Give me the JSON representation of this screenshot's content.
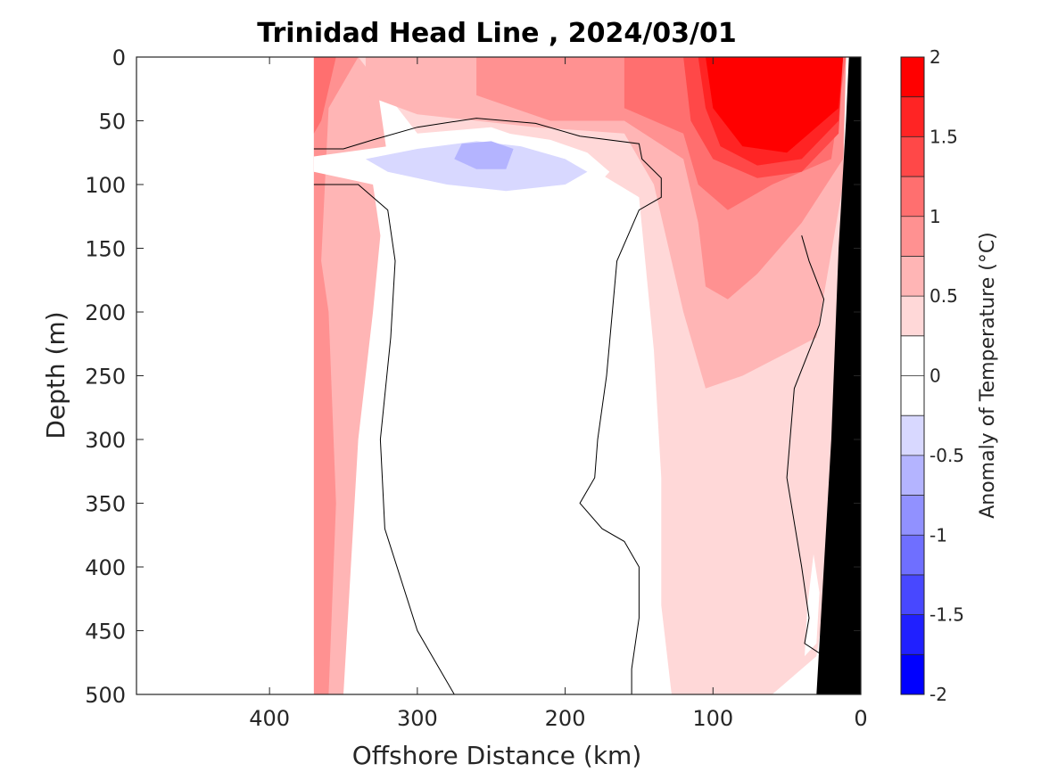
{
  "chart_data": {
    "type": "heatmap",
    "title": "Trinidad Head Line , 2024/03/01",
    "xlabel": "Offshore Distance (km)",
    "ylabel": "Depth (m)",
    "xlim": [
      490,
      0
    ],
    "ylim": [
      0,
      500
    ],
    "x_reversed": true,
    "y_reversed": true,
    "xticks": [
      400,
      300,
      200,
      100,
      0
    ],
    "yticks": [
      0,
      50,
      100,
      150,
      200,
      250,
      300,
      350,
      400,
      450,
      500
    ],
    "colorbar": {
      "label": "Anomaly of Temperature (°C)",
      "range": [
        -2,
        2
      ],
      "step": 0.25,
      "ticks": [
        -2,
        -1.5,
        -1,
        -0.5,
        0,
        0.5,
        1,
        1.5,
        2
      ],
      "colors": [
        "#0000ff",
        "#2020ff",
        "#4848ff",
        "#6f6fff",
        "#9191ff",
        "#b4b4ff",
        "#d8d8ff",
        "#ffffff",
        "#ffffff",
        "#ffd8d8",
        "#ffb5b5",
        "#ff9191",
        "#ff6f6f",
        "#ff4848",
        "#ff2424",
        "#ff0000"
      ]
    },
    "data_extent_km": [
      370,
      0
    ],
    "shelf_color": "#000000",
    "regions": [
      {
        "anomaly": 0.25,
        "points": [
          [
            370,
            0
          ],
          [
            350,
            0
          ],
          [
            350,
            470
          ],
          [
            370,
            470
          ]
        ]
      },
      {
        "anomaly": 0.5,
        "points": [
          [
            370,
            0
          ],
          [
            330,
            0
          ],
          [
            320,
            80
          ],
          [
            330,
            100
          ],
          [
            325,
            140
          ],
          [
            330,
            200
          ],
          [
            340,
            300
          ],
          [
            345,
            400
          ],
          [
            350,
            500
          ],
          [
            370,
            500
          ]
        ]
      },
      {
        "anomaly": 0.75,
        "points": [
          [
            370,
            0
          ],
          [
            340,
            0
          ],
          [
            360,
            40
          ],
          [
            365,
            160
          ],
          [
            360,
            200
          ],
          [
            355,
            350
          ],
          [
            360,
            500
          ],
          [
            370,
            500
          ]
        ]
      },
      {
        "anomaly": 1.0,
        "points": [
          [
            370,
            0
          ],
          [
            355,
            0
          ],
          [
            365,
            50
          ],
          [
            370,
            60
          ]
        ]
      },
      {
        "anomaly": 0.25,
        "points": [
          [
            340,
            0
          ],
          [
            13,
            0
          ],
          [
            10,
            120
          ],
          [
            8,
            250
          ],
          [
            18,
            380
          ],
          [
            30,
            470
          ],
          [
            60,
            500
          ],
          [
            128,
            500
          ],
          [
            135,
            430
          ],
          [
            135,
            330
          ],
          [
            140,
            230
          ],
          [
            150,
            110
          ],
          [
            200,
            75
          ],
          [
            250,
            55
          ],
          [
            300,
            60
          ]
        ]
      },
      {
        "anomaly": 0.5,
        "points": [
          [
            335,
            0
          ],
          [
            10,
            0
          ],
          [
            12,
            100
          ],
          [
            30,
            220
          ],
          [
            80,
            250
          ],
          [
            105,
            260
          ],
          [
            120,
            200
          ],
          [
            130,
            150
          ],
          [
            140,
            100
          ],
          [
            160,
            60
          ],
          [
            220,
            55
          ],
          [
            300,
            45
          ],
          [
            335,
            30
          ]
        ]
      },
      {
        "anomaly": 0.75,
        "points": [
          [
            260,
            0
          ],
          [
            10,
            0
          ],
          [
            12,
            80
          ],
          [
            40,
            130
          ],
          [
            70,
            170
          ],
          [
            90,
            190
          ],
          [
            105,
            180
          ],
          [
            110,
            130
          ],
          [
            120,
            80
          ],
          [
            160,
            50
          ],
          [
            210,
            50
          ],
          [
            260,
            30
          ]
        ]
      },
      {
        "anomaly": 1.0,
        "points": [
          [
            160,
            0
          ],
          [
            10,
            0
          ],
          [
            20,
            80
          ],
          [
            60,
            100
          ],
          [
            90,
            120
          ],
          [
            110,
            100
          ],
          [
            120,
            60
          ],
          [
            160,
            40
          ]
        ]
      },
      {
        "anomaly": 1.25,
        "points": [
          [
            120,
            0
          ],
          [
            12,
            0
          ],
          [
            15,
            60
          ],
          [
            40,
            90
          ],
          [
            70,
            95
          ],
          [
            100,
            80
          ],
          [
            115,
            50
          ]
        ]
      },
      {
        "anomaly": 1.5,
        "points": [
          [
            110,
            0
          ],
          [
            12,
            0
          ],
          [
            15,
            50
          ],
          [
            40,
            80
          ],
          [
            70,
            85
          ],
          [
            95,
            70
          ],
          [
            105,
            40
          ]
        ]
      },
      {
        "anomaly": 1.75,
        "points": [
          [
            105,
            0
          ],
          [
            12,
            0
          ],
          [
            15,
            40
          ],
          [
            50,
            75
          ],
          [
            80,
            70
          ],
          [
            100,
            40
          ]
        ]
      },
      {
        "anomaly": -0.25,
        "points": [
          [
            370,
            78
          ],
          [
            320,
            70
          ],
          [
            280,
            60
          ],
          [
            250,
            58
          ],
          [
            210,
            65
          ],
          [
            185,
            75
          ],
          [
            170,
            90
          ],
          [
            190,
            115
          ],
          [
            220,
            125
          ],
          [
            260,
            140
          ],
          [
            290,
            120
          ],
          [
            330,
            100
          ],
          [
            370,
            90
          ]
        ]
      },
      {
        "anomaly": -0.5,
        "points": [
          [
            335,
            80
          ],
          [
            300,
            72
          ],
          [
            260,
            66
          ],
          [
            230,
            70
          ],
          [
            200,
            80
          ],
          [
            185,
            90
          ],
          [
            200,
            100
          ],
          [
            240,
            105
          ],
          [
            280,
            100
          ],
          [
            320,
            90
          ]
        ]
      },
      {
        "anomaly": -0.75,
        "points": [
          [
            270,
            68
          ],
          [
            250,
            66
          ],
          [
            235,
            72
          ],
          [
            240,
            88
          ],
          [
            260,
            88
          ],
          [
            275,
            80
          ]
        ]
      },
      {
        "anomaly": -0.25,
        "points": [
          [
            300,
            200
          ],
          [
            292,
            220
          ],
          [
            295,
            240
          ],
          [
            302,
            225
          ]
        ]
      },
      {
        "anomaly": -0.25,
        "points": [
          [
            245,
            215
          ],
          [
            215,
            218
          ],
          [
            225,
            235
          ],
          [
            245,
            230
          ]
        ]
      },
      {
        "anomaly": -0.25,
        "points": [
          [
            32,
            390
          ],
          [
            28,
            420
          ],
          [
            30,
            460
          ],
          [
            38,
            470
          ],
          [
            36,
            430
          ]
        ]
      }
    ],
    "zero_contours": [
      [
        [
          370,
          72
        ],
        [
          350,
          72
        ],
        [
          330,
          65
        ],
        [
          300,
          55
        ],
        [
          260,
          48
        ],
        [
          220,
          52
        ],
        [
          190,
          62
        ],
        [
          150,
          68
        ],
        [
          148,
          80
        ],
        [
          135,
          95
        ],
        [
          135,
          110
        ],
        [
          150,
          120
        ],
        [
          165,
          160
        ],
        [
          172,
          250
        ],
        [
          178,
          300
        ],
        [
          180,
          330
        ],
        [
          190,
          350
        ],
        [
          175,
          370
        ],
        [
          160,
          380
        ],
        [
          150,
          400
        ],
        [
          150,
          440
        ],
        [
          155,
          480
        ],
        [
          155,
          500
        ]
      ],
      [
        [
          370,
          100
        ],
        [
          340,
          100
        ],
        [
          320,
          120
        ],
        [
          315,
          160
        ],
        [
          318,
          220
        ],
        [
          325,
          300
        ],
        [
          322,
          370
        ],
        [
          300,
          450
        ],
        [
          285,
          480
        ],
        [
          275,
          500
        ]
      ],
      [
        [
          40,
          140
        ],
        [
          35,
          160
        ],
        [
          25,
          190
        ],
        [
          28,
          210
        ],
        [
          45,
          260
        ],
        [
          50,
          330
        ],
        [
          40,
          400
        ],
        [
          35,
          440
        ],
        [
          38,
          460
        ],
        [
          25,
          470
        ]
      ]
    ]
  }
}
